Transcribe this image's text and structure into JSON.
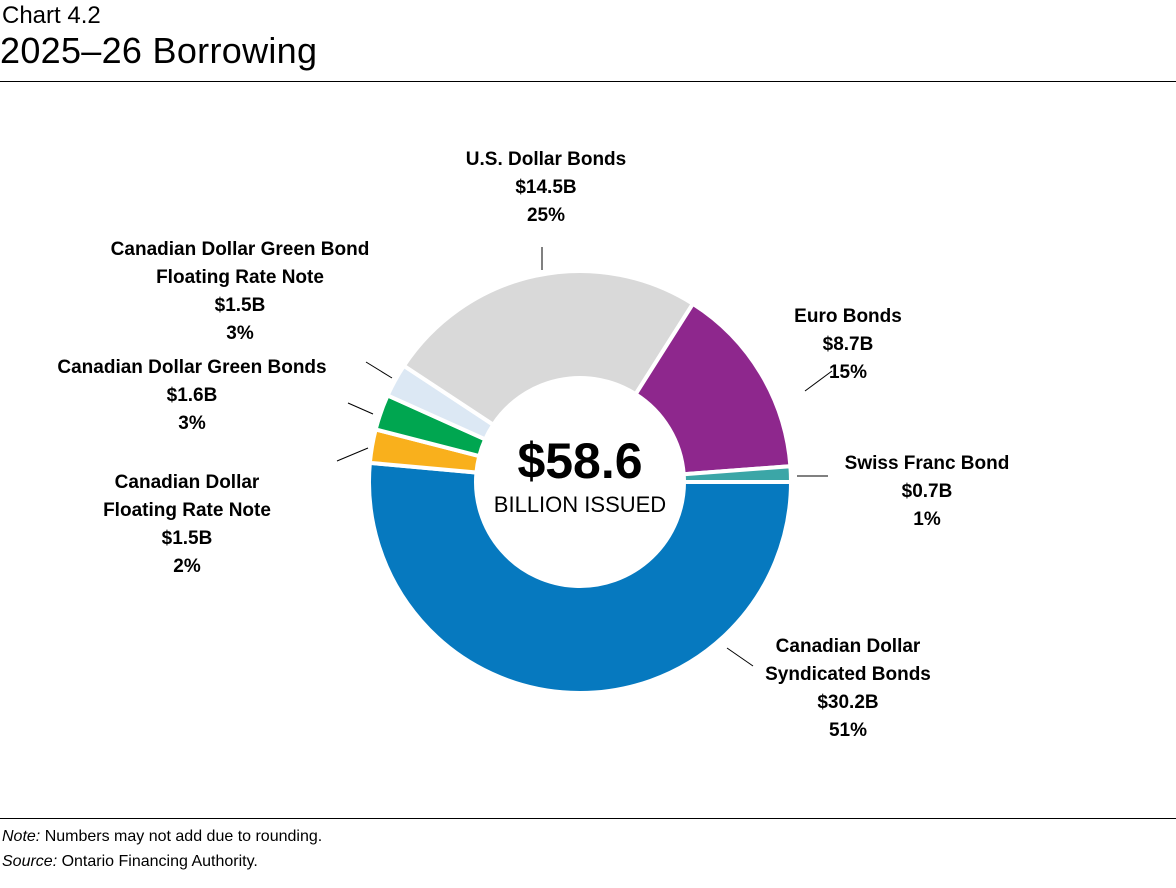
{
  "header": {
    "chart_number": "Chart 4.2",
    "title": "2025–26 Borrowing"
  },
  "chart_data": {
    "type": "pie",
    "subtype": "donut",
    "title": "2025–26 Borrowing",
    "center": {
      "value": "$58.6",
      "label": "BILLION ISSUED"
    },
    "unit": "$ billion",
    "slices": [
      {
        "name": "Canadian Dollar Syndicated Bonds",
        "label_lines": [
          "Canadian Dollar",
          "Syndicated Bonds"
        ],
        "value": 30.2,
        "value_label": "$30.2B",
        "percent_label": "51%",
        "color": "#0679bf"
      },
      {
        "name": "Canadian Dollar Floating Rate Note",
        "label_lines": [
          "Canadian Dollar",
          "Floating Rate Note"
        ],
        "value": 1.5,
        "value_label": "$1.5B",
        "percent_label": "2%",
        "color": "#f9b01c"
      },
      {
        "name": "Canadian Dollar Green Bonds",
        "label_lines": [
          "Canadian Dollar Green Bonds"
        ],
        "value": 1.6,
        "value_label": "$1.6B",
        "percent_label": "3%",
        "color": "#00a650"
      },
      {
        "name": "Canadian Dollar Green Bond Floating Rate Note",
        "label_lines": [
          "Canadian Dollar Green Bond",
          "Floating Rate Note"
        ],
        "value": 1.5,
        "value_label": "$1.5B",
        "percent_label": "3%",
        "color": "#dce8f4"
      },
      {
        "name": "U.S. Dollar Bonds",
        "label_lines": [
          "U.S. Dollar Bonds"
        ],
        "value": 14.5,
        "value_label": "$14.5B",
        "percent_label": "25%",
        "color": "#d9d9d9"
      },
      {
        "name": "Euro Bonds",
        "label_lines": [
          "Euro Bonds"
        ],
        "value": 8.7,
        "value_label": "$8.7B",
        "percent_label": "15%",
        "color": "#8e278d"
      },
      {
        "name": "Swiss Franc Bond",
        "label_lines": [
          "Swiss Franc Bond"
        ],
        "value": 0.7,
        "value_label": "$0.7B",
        "percent_label": "1%",
        "color": "#3ba6a7"
      }
    ]
  },
  "footer": {
    "note_label": "Note:",
    "note_text": " Numbers may not add due to rounding.",
    "source_label": "Source:",
    "source_text": " Ontario Financing Authority."
  }
}
